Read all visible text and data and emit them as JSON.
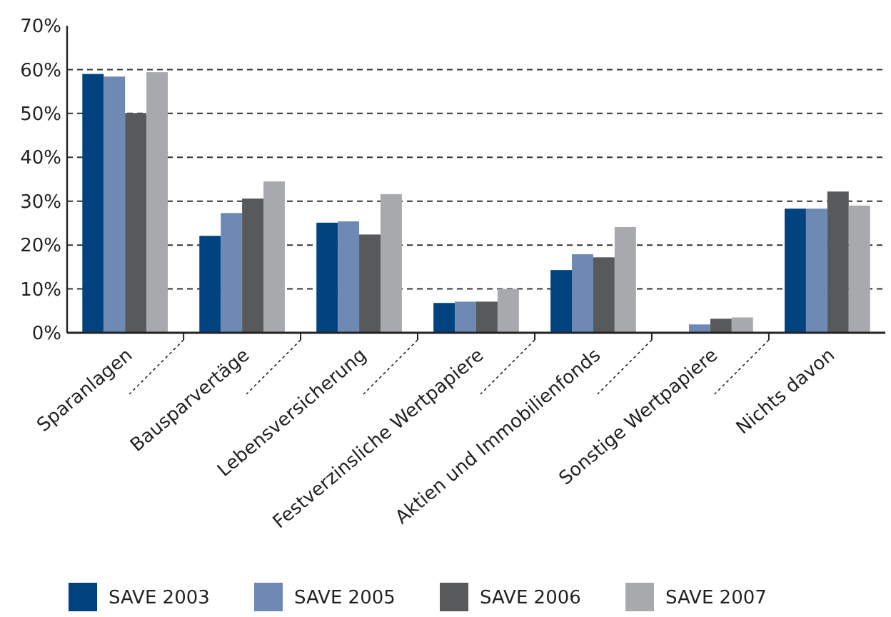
{
  "chart_data": {
    "type": "bar",
    "categories": [
      "Sparanlagen",
      "Bausparvertäge",
      "Lebensversicherung",
      "Festverzinsliche Wertpapiere",
      "Aktien und Immobilienfonds",
      "Sonstige Wertpapiere",
      "Nichts davon"
    ],
    "series": [
      {
        "name": "SAVE 2003",
        "color": "#00437f",
        "values": [
          59.0,
          22.1,
          25.1,
          6.8,
          14.3,
          null,
          28.3
        ]
      },
      {
        "name": "SAVE 2005",
        "color": "#6f89b5",
        "values": [
          58.4,
          27.3,
          25.4,
          7.1,
          17.9,
          1.9,
          28.3
        ]
      },
      {
        "name": "SAVE 2006",
        "color": "#58595b",
        "values": [
          50.1,
          30.6,
          22.4,
          7.1,
          17.2,
          3.2,
          32.2
        ]
      },
      {
        "name": "SAVE 2007",
        "color": "#a7a9ac",
        "values": [
          59.4,
          34.5,
          31.6,
          10.0,
          24.1,
          3.5,
          29.0
        ]
      }
    ],
    "ylim": [
      0,
      70
    ],
    "yticks": [
      {
        "value": 0,
        "label": "0%"
      },
      {
        "value": 10,
        "label": "10%"
      },
      {
        "value": 20,
        "label": "20%"
      },
      {
        "value": 30,
        "label": "30%"
      },
      {
        "value": 40,
        "label": "40%"
      },
      {
        "value": 50,
        "label": "50%"
      },
      {
        "value": 60,
        "label": "60%"
      },
      {
        "value": 70,
        "label": "70%"
      }
    ],
    "grid": "y",
    "legend": "bottom"
  }
}
